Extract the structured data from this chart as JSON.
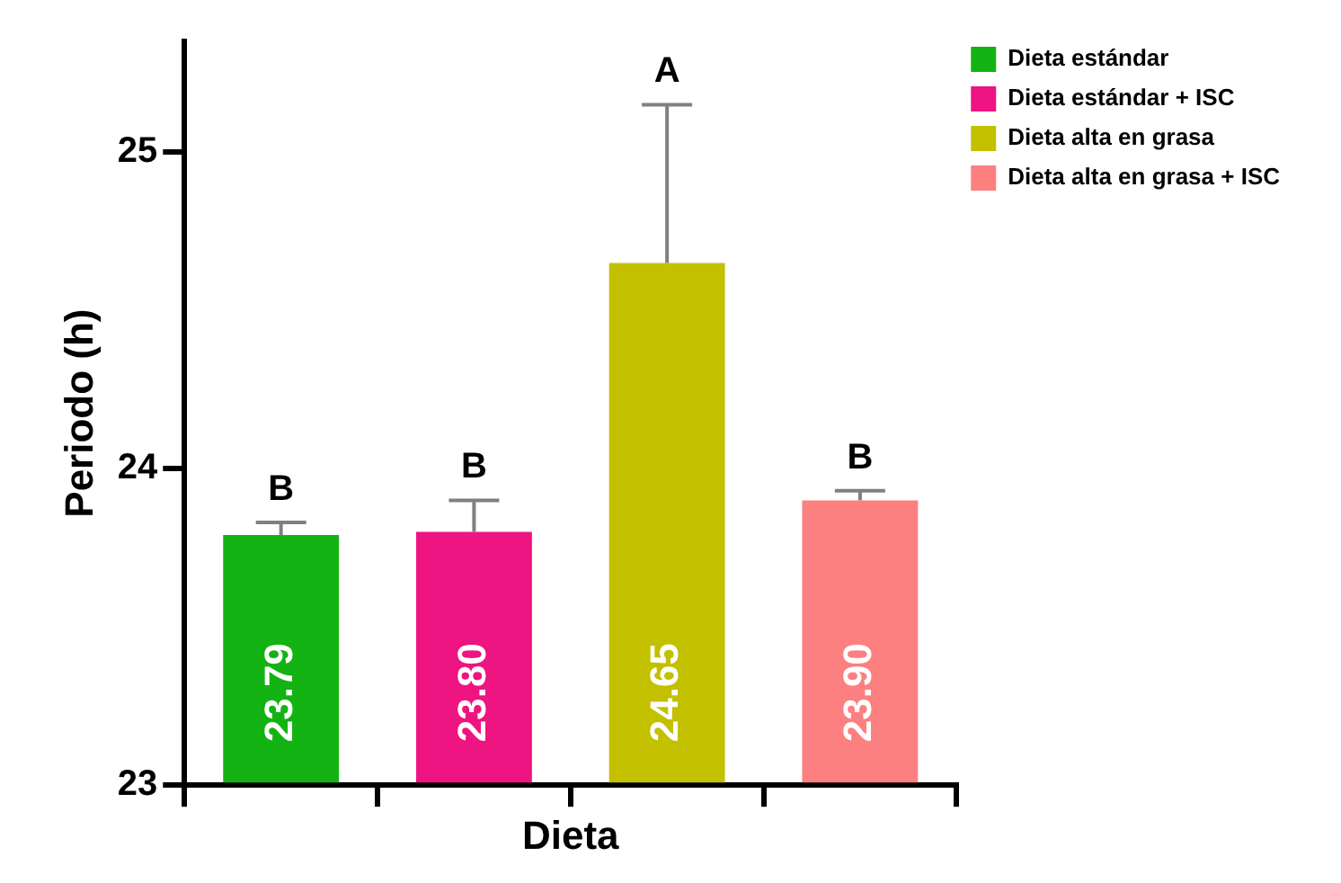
{
  "chart_data": {
    "type": "bar",
    "xlabel": "Dieta",
    "ylabel": "Periodo (h)",
    "categories": [
      null,
      null,
      null,
      null
    ],
    "series": [
      {
        "name": "Dieta estándar",
        "color": "#12b312",
        "values": [
          23.79,
          null,
          null,
          null
        ],
        "value_labels": [
          "23.79",
          null,
          null,
          null
        ],
        "errors": [
          [
            23.79,
            23.83
          ],
          null,
          null,
          null
        ]
      },
      {
        "name": "Dieta estándar + ISC",
        "color": "#ee1481",
        "values": [
          null,
          23.8,
          null,
          null
        ],
        "value_labels": [
          null,
          "23.80",
          null,
          null
        ],
        "errors": [
          null,
          [
            23.8,
            23.9
          ],
          null,
          null
        ]
      },
      {
        "name": "Dieta alta en grasa",
        "color": "#c3c000",
        "values": [
          null,
          null,
          24.65,
          null
        ],
        "value_labels": [
          null,
          null,
          "24.65",
          null
        ],
        "errors": [
          null,
          null,
          [
            24.65,
            25.15
          ],
          null
        ]
      },
      {
        "name": "Dieta alta en grasa + ISC",
        "color": "#fc8080",
        "values": [
          null,
          null,
          null,
          23.9
        ],
        "value_labels": [
          null,
          null,
          null,
          "23.90"
        ],
        "errors": [
          null,
          null,
          null,
          [
            23.9,
            23.93
          ]
        ]
      }
    ],
    "ylim": [
      23,
      25.35
    ],
    "yticks": [
      23,
      24,
      25
    ],
    "grid": false,
    "legend": "top right",
    "tick_labels": "y",
    "annotations": [
      {
        "text": "B",
        "y": 23.83
      },
      {
        "text": "B",
        "y": 23.9
      },
      {
        "text": "A",
        "y": 25.15
      },
      {
        "text": "B",
        "y": 23.93
      }
    ]
  }
}
